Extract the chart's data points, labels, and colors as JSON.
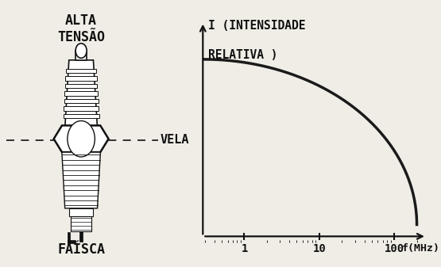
{
  "bg_color": "#f0ede6",
  "ylabel_line1": "I (INTENSIDADE",
  "ylabel_line2": "RELATIVA )",
  "xlabel": "f(MHz)",
  "xtick_labels": [
    "1",
    "10",
    "100"
  ],
  "xtick_positions_log": [
    0.0,
    1.0,
    2.0
  ],
  "curve_color": "#1a1a1a",
  "curve_linewidth": 2.5,
  "axis_linewidth": 1.6,
  "label_alta": "ALTA\nTENSÃO",
  "label_vela": "VELA",
  "label_faisca": "FAÍSCA",
  "text_color": "#111111",
  "font_size_main": 11,
  "font_size_axis": 10,
  "font_size_ylabel": 10.5
}
